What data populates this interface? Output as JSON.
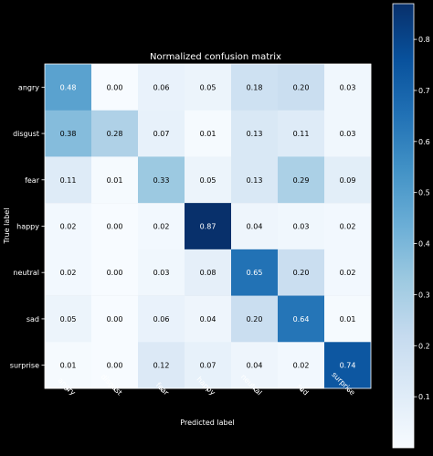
{
  "chart_data": {
    "type": "heatmap",
    "title": "Normalized confusion matrix",
    "xlabel": "Predicted label",
    "ylabel": "True label",
    "x_categories": [
      "angry",
      "disgust",
      "fear",
      "happy",
      "neutral",
      "sad",
      "surprise"
    ],
    "y_categories": [
      "angry",
      "disgust",
      "fear",
      "happy",
      "neutral",
      "sad",
      "surprise"
    ],
    "values": [
      [
        0.48,
        0.0,
        0.06,
        0.05,
        0.18,
        0.2,
        0.03
      ],
      [
        0.38,
        0.28,
        0.07,
        0.01,
        0.13,
        0.11,
        0.03
      ],
      [
        0.11,
        0.01,
        0.33,
        0.05,
        0.13,
        0.29,
        0.09
      ],
      [
        0.02,
        0.0,
        0.02,
        0.87,
        0.04,
        0.03,
        0.02
      ],
      [
        0.02,
        0.0,
        0.03,
        0.08,
        0.65,
        0.2,
        0.02
      ],
      [
        0.05,
        0.0,
        0.06,
        0.04,
        0.2,
        0.64,
        0.01
      ],
      [
        0.01,
        0.0,
        0.12,
        0.07,
        0.04,
        0.02,
        0.74
      ]
    ],
    "colormap": "Blues",
    "colorbar": {
      "range": [
        0,
        0.87
      ],
      "ticks": [
        "0.1",
        "0.2",
        "0.3",
        "0.4",
        "0.5",
        "0.6",
        "0.7",
        "0.8"
      ]
    },
    "background_color": "#000000",
    "text_color": "#ffffff"
  }
}
